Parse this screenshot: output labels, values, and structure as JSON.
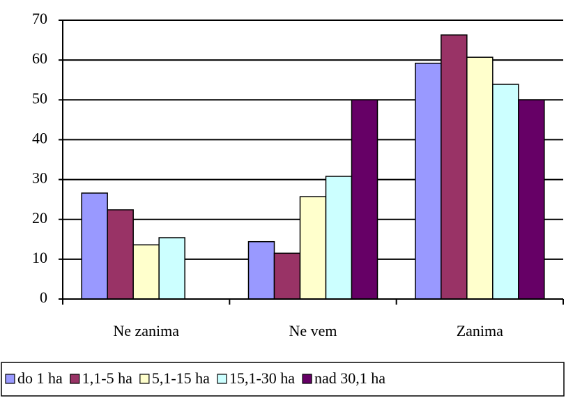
{
  "chart_data": {
    "type": "bar",
    "categories": [
      "Ne zanima",
      "Ne vem",
      "Zanima"
    ],
    "series": [
      {
        "name": "do 1 ha",
        "color": "#9999ff",
        "values": [
          26.6,
          14.4,
          59.2
        ]
      },
      {
        "name": "1,1-5 ha",
        "color": "#993366",
        "values": [
          22.4,
          11.5,
          66.3
        ]
      },
      {
        "name": "5,1-15 ha",
        "color": "#ffffcc",
        "values": [
          13.6,
          25.7,
          60.7
        ]
      },
      {
        "name": "15,1-30 ha",
        "color": "#ccffff",
        "values": [
          15.4,
          30.8,
          53.9
        ]
      },
      {
        "name": "nad 30,1 ha",
        "color": "#660066",
        "values": [
          0,
          50,
          50
        ]
      }
    ],
    "ylim": [
      0,
      70
    ],
    "yticks": [
      0,
      10,
      20,
      30,
      40,
      50,
      60,
      70
    ],
    "grid": true,
    "legend": "bottom"
  }
}
